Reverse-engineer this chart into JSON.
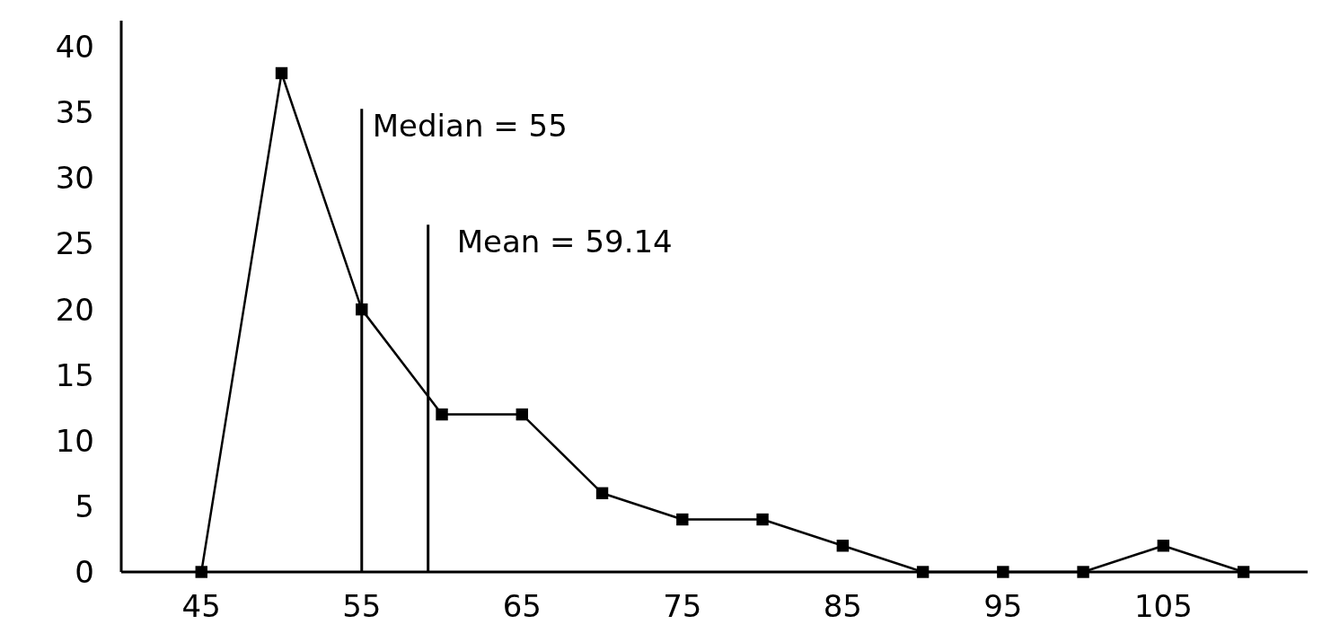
{
  "chart_data": {
    "type": "line",
    "x": [
      45,
      50,
      55,
      60,
      65,
      70,
      75,
      80,
      85,
      90,
      95,
      100,
      105,
      110
    ],
    "series": [
      {
        "color": "#000000",
        "values": [
          0,
          38,
          20,
          12,
          12,
          6,
          4,
          4,
          2,
          0,
          0,
          0,
          2,
          0
        ]
      }
    ],
    "xlim": [
      40,
      114
    ],
    "ylim": [
      0,
      42
    ],
    "xticks": [
      45,
      55,
      65,
      75,
      85,
      95,
      105
    ],
    "yticks": [
      0,
      5,
      10,
      15,
      20,
      25,
      30,
      35,
      40
    ],
    "marker": "square",
    "line_style": "solid",
    "grid": false,
    "ref_lines": [
      {
        "axis": "x",
        "value": 55,
        "label": "Median = 55",
        "color": "#000000"
      },
      {
        "axis": "x",
        "value": 59.14,
        "label": "Mean = 59.14",
        "color": "#000000"
      }
    ]
  }
}
